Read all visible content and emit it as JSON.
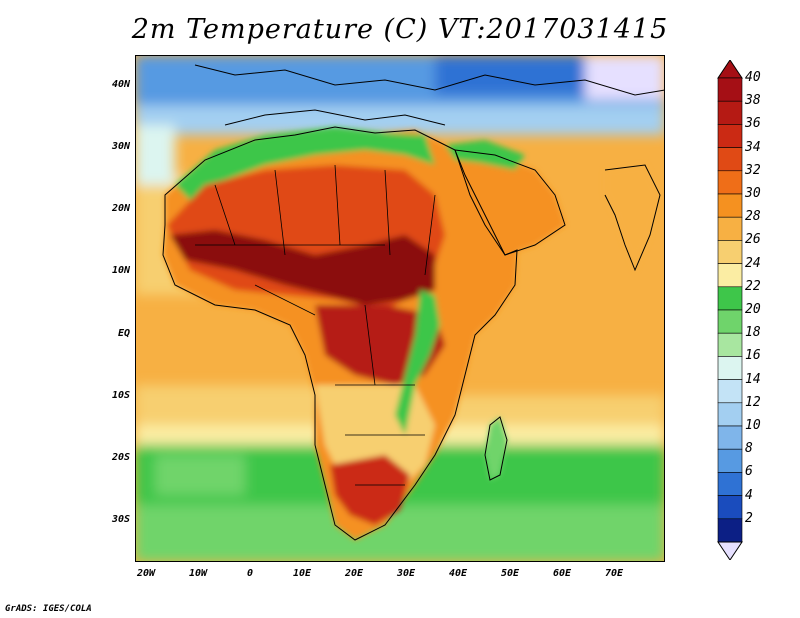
{
  "title": "2m Temperature (C) VT:2017031415",
  "credit": "GrADS: IGES/COLA",
  "lat_labels": [
    "40N",
    "30N",
    "20N",
    "10N",
    "EQ",
    "10S",
    "20S",
    "30S"
  ],
  "lon_labels": [
    "20W",
    "10W",
    "0",
    "10E",
    "20E",
    "30E",
    "40E",
    "50E",
    "60E",
    "70E"
  ],
  "colorbar": {
    "labels": [
      "40",
      "38",
      "36",
      "34",
      "32",
      "30",
      "28",
      "26",
      "24",
      "22",
      "20",
      "18",
      "16",
      "14",
      "12",
      "10",
      "8",
      "6",
      "4",
      "2"
    ],
    "colors": [
      "#a50f15",
      "#b51a14",
      "#cb2a14",
      "#e04a15",
      "#ef6e18",
      "#f59120",
      "#f7b043",
      "#f7cf70",
      "#fbeda3",
      "#3ec64a",
      "#6fd46b",
      "#a8e6a0",
      "#dcf5f0",
      "#c3e3f6",
      "#a3cff1",
      "#7fb5ea",
      "#579ae2",
      "#2f72d4",
      "#1a4cbd",
      "#0c1f85"
    ],
    "over_color": "#a50f15",
    "under_color": "#e6e0ff"
  },
  "map_colors": {
    "ocean_warm": "#f7b043",
    "ocean_mid": "#f7cf70",
    "ocean_cool": "#fbeda3",
    "green": "#3ec64a",
    "lightgreen": "#6fd46b",
    "hot": "#e04a15",
    "very_hot": "#b51a14",
    "extreme": "#8b0a0a",
    "blue": "#579ae2",
    "lightblue": "#a3cff1",
    "darkblue": "#2f72d4",
    "lavender": "#e6e0ff"
  }
}
